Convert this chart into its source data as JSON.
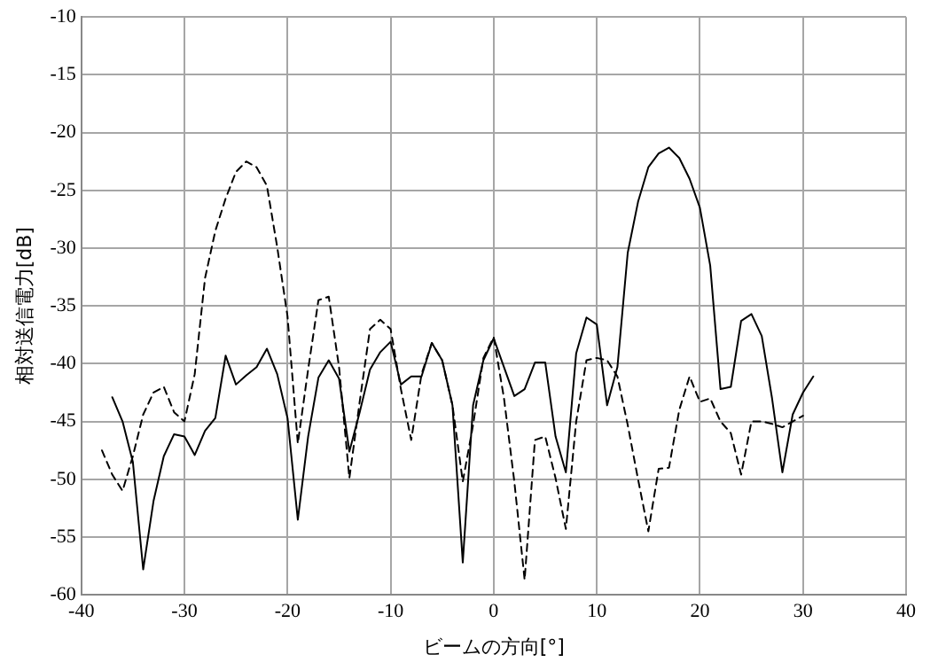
{
  "chart_data": {
    "type": "line",
    "xlabel": "ビームの方向[°]",
    "ylabel": "相対送信電力[dB]",
    "xlim": [
      -40,
      40
    ],
    "xticks": [
      -40,
      -30,
      -20,
      -10,
      0,
      10,
      20,
      30,
      40
    ],
    "ylim": [
      -60,
      -10
    ],
    "yticks": [
      -60,
      -55,
      -50,
      -45,
      -40,
      -35,
      -30,
      -25,
      -20,
      -15,
      -10
    ],
    "grid": true,
    "legend": false,
    "marker": "none",
    "series": [
      {
        "color": "#000000",
        "line_style": "solid",
        "x": [
          -37,
          -36,
          -35,
          -34,
          -33,
          -32,
          -31,
          -30,
          -29,
          -28,
          -27,
          -26,
          -25,
          -24,
          -23,
          -22,
          -21,
          -20,
          -19,
          -18,
          -17,
          -16,
          -15,
          -14,
          -13,
          -12,
          -11,
          -10,
          -9,
          -8,
          -7,
          -6,
          -5,
          -4,
          -3,
          -2,
          -1,
          0,
          1,
          2,
          3,
          4,
          5,
          6,
          7,
          8,
          9,
          10,
          11,
          12,
          13,
          14,
          15,
          16,
          17,
          18,
          19,
          20,
          21,
          22,
          23,
          24,
          25,
          26,
          27,
          28,
          29,
          30,
          31
        ],
        "values": [
          -42.9,
          -45,
          -48.5,
          -57.8,
          -51.9,
          -48,
          -46.1,
          -46.3,
          -47.9,
          -45.8,
          -44.7,
          -39.3,
          -41.8,
          -41,
          -40.3,
          -38.7,
          -40.9,
          -44.7,
          -53.5,
          -46.3,
          -41.2,
          -39.7,
          -41.3,
          -47.6,
          -44.2,
          -40.5,
          -39,
          -38.1,
          -41.8,
          -41.1,
          -41.1,
          -38.2,
          -39.7,
          -43.6,
          -57.2,
          -43.6,
          -39.7,
          -37.8,
          -40.3,
          -42.8,
          -42.2,
          -39.9,
          -39.9,
          -46.3,
          -49.4,
          -39.1,
          -36,
          -36.6,
          -43.6,
          -40.3,
          -30.4,
          -26,
          -23,
          -21.8,
          -21.3,
          -22.2,
          -24,
          -26.5,
          -31.5,
          -42.2,
          -42,
          -36.3,
          -35.7,
          -37.6,
          -43,
          -49.4,
          -44.4,
          -42.5,
          -41.1
        ]
      },
      {
        "color": "#000000",
        "line_style": "dashed",
        "x": [
          -38,
          -37,
          -36,
          -35,
          -34,
          -33,
          -32,
          -31,
          -30,
          -29,
          -28,
          -27,
          -26,
          -25,
          -24,
          -23,
          -22,
          -21,
          -20,
          -19,
          -18,
          -17,
          -16,
          -15,
          -14,
          -13,
          -12,
          -11,
          -10,
          -9,
          -8,
          -7,
          -6,
          -5,
          -4,
          -3,
          -2,
          -1,
          0,
          1,
          2,
          3,
          4,
          5,
          6,
          7,
          8,
          9,
          10,
          11,
          12,
          13,
          14,
          15,
          16,
          17,
          18,
          19,
          20,
          21,
          22,
          23,
          24,
          25,
          26,
          27,
          28,
          29,
          30
        ],
        "values": [
          -47.5,
          -49.6,
          -51,
          -48,
          -44.4,
          -42.5,
          -42,
          -44.2,
          -45,
          -40.9,
          -32.6,
          -28.5,
          -25.7,
          -23.4,
          -22.5,
          -23,
          -24.6,
          -29.9,
          -35.9,
          -46.9,
          -40.5,
          -34.5,
          -34.2,
          -40.3,
          -49.9,
          -43.3,
          -37,
          -36.2,
          -37,
          -42.2,
          -46.6,
          -40.9,
          -38.2,
          -39.7,
          -43.6,
          -50.2,
          -45.3,
          -39.5,
          -37.7,
          -43,
          -50.2,
          -58.7,
          -46.6,
          -46.3,
          -49.9,
          -54.3,
          -45,
          -39.7,
          -39.5,
          -39.7,
          -41.1,
          -45.3,
          -50,
          -54.5,
          -49.1,
          -49,
          -44,
          -41.1,
          -43.3,
          -43,
          -45,
          -46,
          -49.6,
          -45,
          -45,
          -45.2,
          -45.5,
          -45,
          -44.5
        ]
      }
    ]
  }
}
